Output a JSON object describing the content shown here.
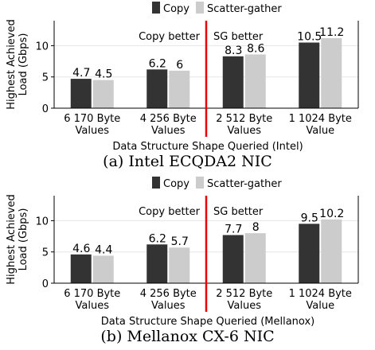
{
  "colors": {
    "copy": "#333333",
    "scatter_gather": "#cccccc",
    "divider": "#e8000b",
    "region_text": "#e8000b",
    "grid": "#e6e6e6"
  },
  "chart_data": [
    {
      "type": "bar",
      "categories": [
        "6 170 Byte\nValues",
        "4 256 Byte\nValues",
        "2 512 Byte\nValues",
        "1 1024 Byte\nValue"
      ],
      "series": [
        {
          "name": "Copy",
          "values": [
            4.7,
            6.2,
            8.3,
            10.5
          ],
          "labels": [
            "4.7",
            "6.2",
            "8.3",
            "10.5"
          ]
        },
        {
          "name": "Scatter-gather",
          "values": [
            4.5,
            6,
            8.6,
            11.2
          ],
          "labels": [
            "4.5",
            "6",
            "8.6",
            "11.2"
          ]
        }
      ],
      "xlabel": "Data Structure Shape Queried (Intel)",
      "ylabel": "Highest Achieved\nLoad (Gbps)",
      "ylim": [
        0,
        14
      ],
      "yticks": [
        0,
        5,
        10
      ],
      "grid": true,
      "legend": "top-center",
      "annotations": {
        "left": "Copy better",
        "right": "SG better"
      },
      "caption": "(a) Intel ECQDA2 NIC"
    },
    {
      "type": "bar",
      "categories": [
        "6 170 Byte\nValues",
        "4 256 Byte\nValues",
        "2 512 Byte\nValues",
        "1 1024 Byte\nValue"
      ],
      "series": [
        {
          "name": "Copy",
          "values": [
            4.6,
            6.2,
            7.7,
            9.5
          ],
          "labels": [
            "4.6",
            "6.2",
            "7.7",
            "9.5"
          ]
        },
        {
          "name": "Scatter-gather",
          "values": [
            4.4,
            5.7,
            8,
            10.2
          ],
          "labels": [
            "4.4",
            "5.7",
            "8",
            "10.2"
          ]
        }
      ],
      "xlabel": "Data Structure Shape Queried (Mellanox)",
      "ylabel": "Highest Achieved\nLoad (Gbps)",
      "ylim": [
        0,
        14
      ],
      "yticks": [
        0,
        5,
        10
      ],
      "grid": true,
      "legend": "top-center",
      "annotations": {
        "left": "Copy better",
        "right": "SG better"
      },
      "caption": "(b) Mellanox CX-6 NIC"
    }
  ]
}
